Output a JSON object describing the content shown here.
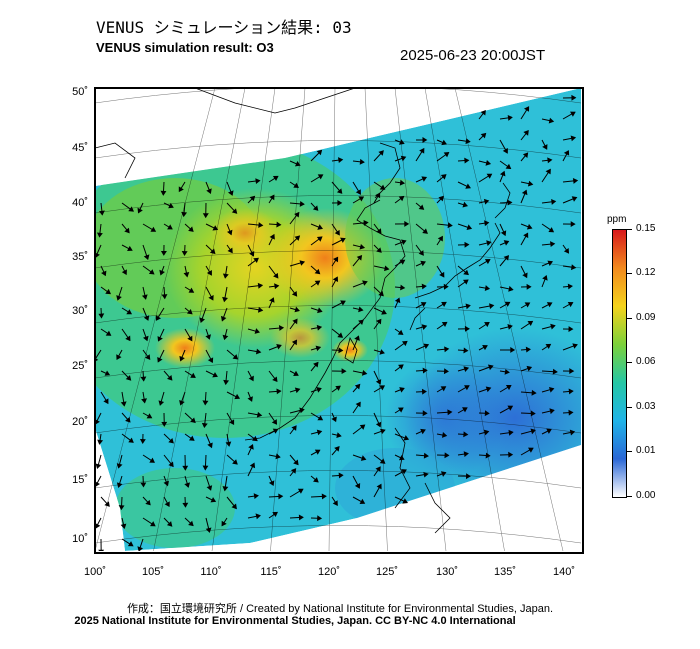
{
  "header": {
    "title_jp": "VENUS シミュレーション結果: 03",
    "title_en": "VENUS simulation result: O3",
    "datetime": "2025-06-23 20:00JST"
  },
  "map": {
    "lat_labels": [
      "50˚",
      "45˚",
      "40˚",
      "35˚",
      "30˚",
      "25˚",
      "20˚",
      "15˚",
      "10˚"
    ],
    "lon_labels": [
      "100˚",
      "105˚",
      "110˚",
      "115˚",
      "120˚",
      "125˚",
      "130˚",
      "135˚",
      "140˚"
    ],
    "lat_range": [
      9,
      51
    ],
    "lon_range": [
      100,
      141
    ],
    "field_colors": {
      "low": "#3a7bd5",
      "mid_low": "#2fc0d8",
      "mid": "#3fc98a",
      "mid_high": "#9bd12f",
      "high": "#f2c61f",
      "peak": "#ef7f1a"
    }
  },
  "colorbar": {
    "unit": "ppm",
    "labels": [
      "0.15",
      "0.12",
      "0.09",
      "0.06",
      "0.03",
      "0.01",
      "0.00"
    ],
    "colors": [
      "#d7191c",
      "#f28a1e",
      "#f5d31c",
      "#7cd13a",
      "#25c7a5",
      "#20b4e8",
      "#2a67d6",
      "#ffffff"
    ]
  },
  "credits": {
    "line1": "作成：国立環境研究所 / Created by National Institute for Environmental Studies, Japan.",
    "line2": "2025 National Institute for Environmental Studies, Japan. CC BY-NC 4.0 International"
  }
}
